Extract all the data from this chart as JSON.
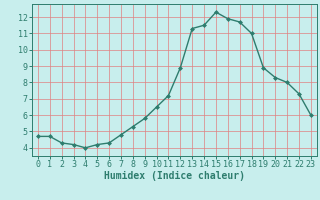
{
  "x": [
    0,
    1,
    2,
    3,
    4,
    5,
    6,
    7,
    8,
    9,
    10,
    11,
    12,
    13,
    14,
    15,
    16,
    17,
    18,
    19,
    20,
    21,
    22,
    23
  ],
  "y": [
    4.7,
    4.7,
    4.3,
    4.2,
    4.0,
    4.2,
    4.3,
    4.8,
    5.3,
    5.8,
    6.5,
    7.2,
    8.9,
    11.3,
    11.5,
    12.3,
    11.9,
    11.7,
    11.0,
    8.9,
    8.3,
    8.0,
    7.3,
    6.0
  ],
  "line_color": "#2e7d6e",
  "marker": "D",
  "marker_size": 2.0,
  "background_color": "#c8eeed",
  "grid_color": "#e08080",
  "xlabel": "Humidex (Indice chaleur)",
  "xlim": [
    -0.5,
    23.5
  ],
  "ylim": [
    3.5,
    12.8
  ],
  "yticks": [
    4,
    5,
    6,
    7,
    8,
    9,
    10,
    11,
    12
  ],
  "xticks": [
    0,
    1,
    2,
    3,
    4,
    5,
    6,
    7,
    8,
    9,
    10,
    11,
    12,
    13,
    14,
    15,
    16,
    17,
    18,
    19,
    20,
    21,
    22,
    23
  ],
  "xlabel_fontsize": 7,
  "tick_fontsize": 6,
  "line_width": 1.0,
  "spine_color": "#2e7d6e"
}
